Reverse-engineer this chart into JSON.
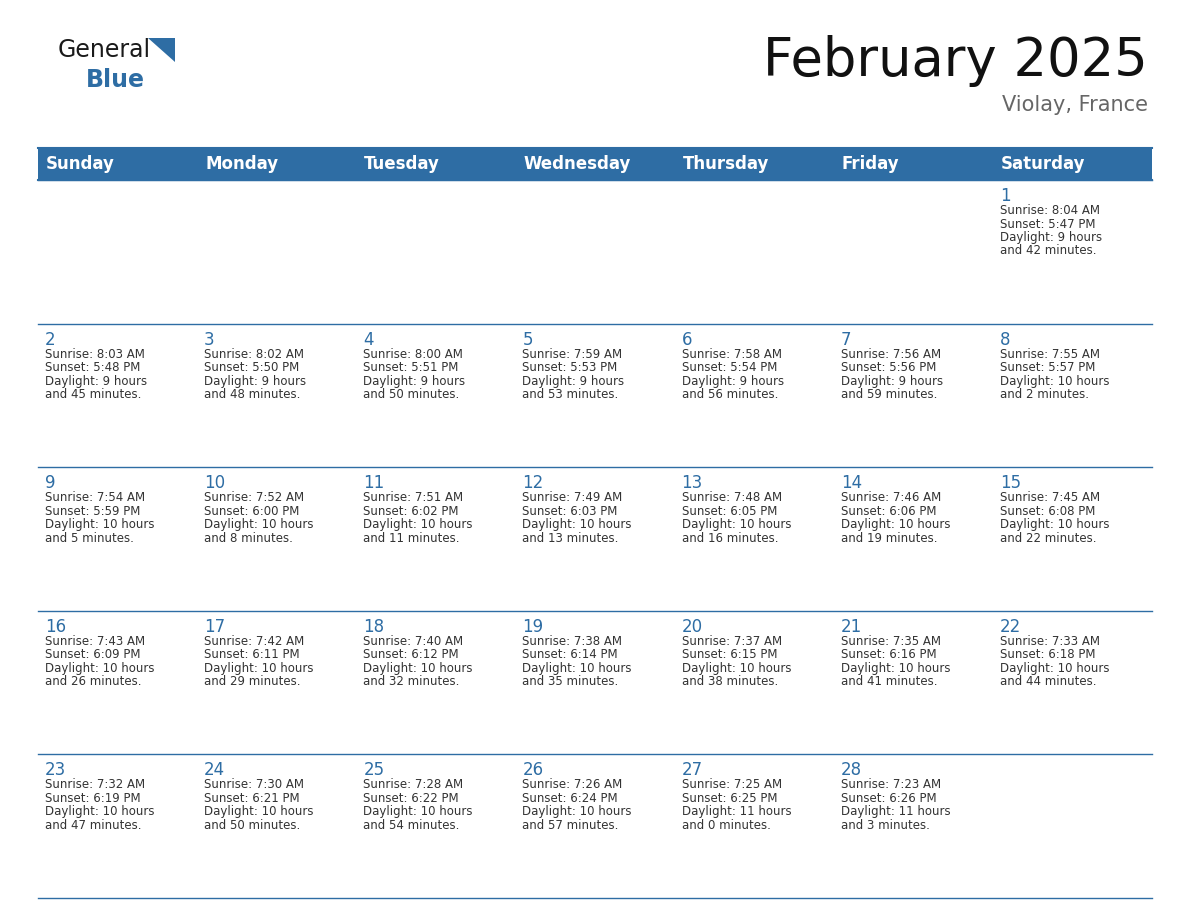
{
  "title": "February 2025",
  "subtitle": "Violay, France",
  "header_bg": "#2E6DA4",
  "header_text_color": "#FFFFFF",
  "border_color": "#2E6DA4",
  "day_number_color": "#2E6DA4",
  "text_color": "#333333",
  "day_names": [
    "Sunday",
    "Monday",
    "Tuesday",
    "Wednesday",
    "Thursday",
    "Friday",
    "Saturday"
  ],
  "days_data": [
    {
      "day": 1,
      "col": 6,
      "row": 0,
      "sunrise": "8:04 AM",
      "sunset": "5:47 PM",
      "daylight": "9 hours and 42 minutes."
    },
    {
      "day": 2,
      "col": 0,
      "row": 1,
      "sunrise": "8:03 AM",
      "sunset": "5:48 PM",
      "daylight": "9 hours and 45 minutes."
    },
    {
      "day": 3,
      "col": 1,
      "row": 1,
      "sunrise": "8:02 AM",
      "sunset": "5:50 PM",
      "daylight": "9 hours and 48 minutes."
    },
    {
      "day": 4,
      "col": 2,
      "row": 1,
      "sunrise": "8:00 AM",
      "sunset": "5:51 PM",
      "daylight": "9 hours and 50 minutes."
    },
    {
      "day": 5,
      "col": 3,
      "row": 1,
      "sunrise": "7:59 AM",
      "sunset": "5:53 PM",
      "daylight": "9 hours and 53 minutes."
    },
    {
      "day": 6,
      "col": 4,
      "row": 1,
      "sunrise": "7:58 AM",
      "sunset": "5:54 PM",
      "daylight": "9 hours and 56 minutes."
    },
    {
      "day": 7,
      "col": 5,
      "row": 1,
      "sunrise": "7:56 AM",
      "sunset": "5:56 PM",
      "daylight": "9 hours and 59 minutes."
    },
    {
      "day": 8,
      "col": 6,
      "row": 1,
      "sunrise": "7:55 AM",
      "sunset": "5:57 PM",
      "daylight": "10 hours and 2 minutes."
    },
    {
      "day": 9,
      "col": 0,
      "row": 2,
      "sunrise": "7:54 AM",
      "sunset": "5:59 PM",
      "daylight": "10 hours and 5 minutes."
    },
    {
      "day": 10,
      "col": 1,
      "row": 2,
      "sunrise": "7:52 AM",
      "sunset": "6:00 PM",
      "daylight": "10 hours and 8 minutes."
    },
    {
      "day": 11,
      "col": 2,
      "row": 2,
      "sunrise": "7:51 AM",
      "sunset": "6:02 PM",
      "daylight": "10 hours and 11 minutes."
    },
    {
      "day": 12,
      "col": 3,
      "row": 2,
      "sunrise": "7:49 AM",
      "sunset": "6:03 PM",
      "daylight": "10 hours and 13 minutes."
    },
    {
      "day": 13,
      "col": 4,
      "row": 2,
      "sunrise": "7:48 AM",
      "sunset": "6:05 PM",
      "daylight": "10 hours and 16 minutes."
    },
    {
      "day": 14,
      "col": 5,
      "row": 2,
      "sunrise": "7:46 AM",
      "sunset": "6:06 PM",
      "daylight": "10 hours and 19 minutes."
    },
    {
      "day": 15,
      "col": 6,
      "row": 2,
      "sunrise": "7:45 AM",
      "sunset": "6:08 PM",
      "daylight": "10 hours and 22 minutes."
    },
    {
      "day": 16,
      "col": 0,
      "row": 3,
      "sunrise": "7:43 AM",
      "sunset": "6:09 PM",
      "daylight": "10 hours and 26 minutes."
    },
    {
      "day": 17,
      "col": 1,
      "row": 3,
      "sunrise": "7:42 AM",
      "sunset": "6:11 PM",
      "daylight": "10 hours and 29 minutes."
    },
    {
      "day": 18,
      "col": 2,
      "row": 3,
      "sunrise": "7:40 AM",
      "sunset": "6:12 PM",
      "daylight": "10 hours and 32 minutes."
    },
    {
      "day": 19,
      "col": 3,
      "row": 3,
      "sunrise": "7:38 AM",
      "sunset": "6:14 PM",
      "daylight": "10 hours and 35 minutes."
    },
    {
      "day": 20,
      "col": 4,
      "row": 3,
      "sunrise": "7:37 AM",
      "sunset": "6:15 PM",
      "daylight": "10 hours and 38 minutes."
    },
    {
      "day": 21,
      "col": 5,
      "row": 3,
      "sunrise": "7:35 AM",
      "sunset": "6:16 PM",
      "daylight": "10 hours and 41 minutes."
    },
    {
      "day": 22,
      "col": 6,
      "row": 3,
      "sunrise": "7:33 AM",
      "sunset": "6:18 PM",
      "daylight": "10 hours and 44 minutes."
    },
    {
      "day": 23,
      "col": 0,
      "row": 4,
      "sunrise": "7:32 AM",
      "sunset": "6:19 PM",
      "daylight": "10 hours and 47 minutes."
    },
    {
      "day": 24,
      "col": 1,
      "row": 4,
      "sunrise": "7:30 AM",
      "sunset": "6:21 PM",
      "daylight": "10 hours and 50 minutes."
    },
    {
      "day": 25,
      "col": 2,
      "row": 4,
      "sunrise": "7:28 AM",
      "sunset": "6:22 PM",
      "daylight": "10 hours and 54 minutes."
    },
    {
      "day": 26,
      "col": 3,
      "row": 4,
      "sunrise": "7:26 AM",
      "sunset": "6:24 PM",
      "daylight": "10 hours and 57 minutes."
    },
    {
      "day": 27,
      "col": 4,
      "row": 4,
      "sunrise": "7:25 AM",
      "sunset": "6:25 PM",
      "daylight": "11 hours and 0 minutes."
    },
    {
      "day": 28,
      "col": 5,
      "row": 4,
      "sunrise": "7:23 AM",
      "sunset": "6:26 PM",
      "daylight": "11 hours and 3 minutes."
    }
  ],
  "logo_color_general": "#1a1a1a",
  "logo_color_blue": "#2E6DA4",
  "logo_triangle_color": "#2E6DA4",
  "title_fontsize": 38,
  "subtitle_fontsize": 15,
  "header_fontsize": 12,
  "day_num_fontsize": 12,
  "cell_text_fontsize": 8.5
}
